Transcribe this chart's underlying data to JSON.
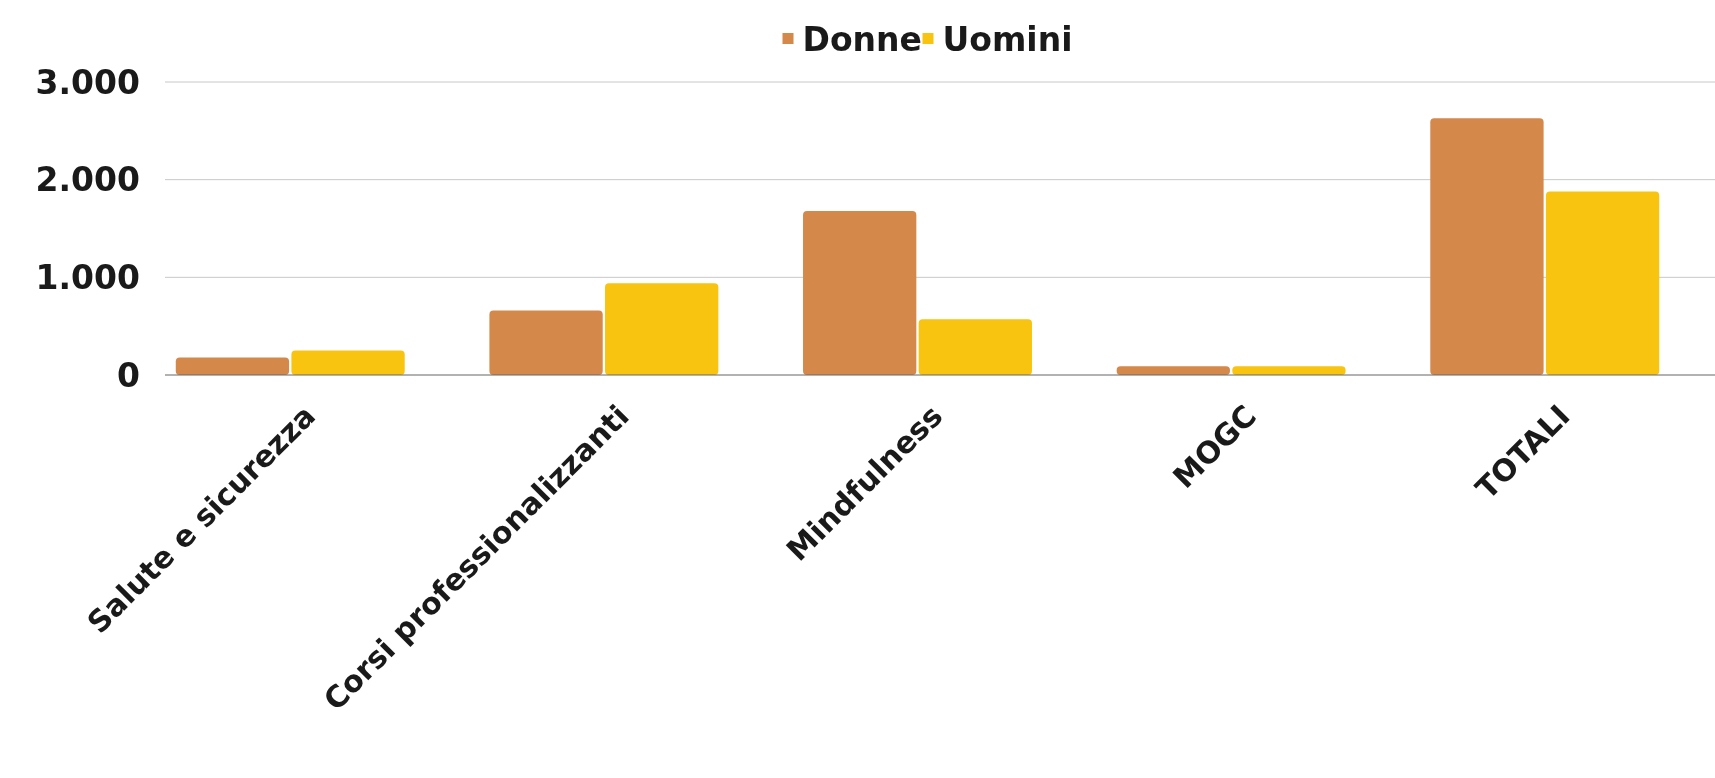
{
  "chart_data": {
    "type": "bar",
    "categories": [
      "Salute e sicurezza",
      "Corsi professionalizzanti",
      "Mindfulness",
      "MOGC",
      "TOTALI"
    ],
    "series": [
      {
        "name": "Donne",
        "color": "#d4894a",
        "values": [
          180,
          660,
          1680,
          90,
          2630
        ]
      },
      {
        "name": "Uomini",
        "color": "#f9c40f",
        "values": [
          250,
          940,
          570,
          90,
          1880
        ]
      }
    ],
    "ylim": [
      0,
      3000
    ],
    "yticks": [
      {
        "value": 0,
        "label": "0"
      },
      {
        "value": 1000,
        "label": "1.000"
      },
      {
        "value": 2000,
        "label": "2.000"
      },
      {
        "value": 3000,
        "label": "3.000"
      }
    ],
    "grid": "y",
    "legend": "top"
  }
}
